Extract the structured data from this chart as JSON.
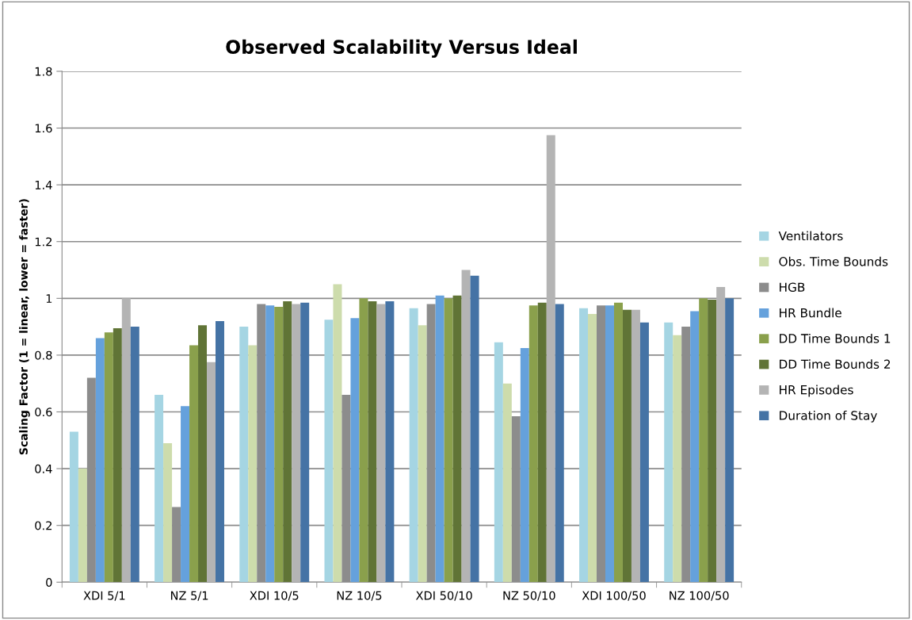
{
  "chart_data": {
    "type": "bar",
    "title": "Observed Scalability Versus Ideal",
    "ylabel": "Scaling Factor (1 = linear, lower = faster)",
    "categories": [
      "XDI 5/1",
      "NZ 5/1",
      "XDI 10/5",
      "NZ 10/5",
      "XDI 50/10",
      "NZ 50/10",
      "XDI 100/50",
      "NZ 100/50"
    ],
    "series": [
      {
        "name": "Ventilators",
        "color": "#a5d5e3",
        "values": [
          0.53,
          0.66,
          0.9,
          0.925,
          0.965,
          0.845,
          0.965,
          0.915
        ]
      },
      {
        "name": "Obs. Time Bounds",
        "color": "#cddcac",
        "values": [
          0.4,
          0.49,
          0.835,
          1.05,
          0.905,
          0.7,
          0.945,
          0.87
        ]
      },
      {
        "name": "HGB",
        "color": "#8c8c8c",
        "values": [
          0.72,
          0.265,
          0.98,
          0.66,
          0.98,
          0.585,
          0.975,
          0.9
        ]
      },
      {
        "name": "HR Bundle",
        "color": "#65a1dc",
        "values": [
          0.86,
          0.62,
          0.975,
          0.93,
          1.01,
          0.825,
          0.975,
          0.955
        ]
      },
      {
        "name": "DD Time Bounds 1",
        "color": "#8aa04c",
        "values": [
          0.88,
          0.835,
          0.97,
          1.0,
          1.0,
          0.975,
          0.985,
          1.0
        ]
      },
      {
        "name": "DD Time Bounds 2",
        "color": "#607436",
        "values": [
          0.895,
          0.905,
          0.99,
          0.99,
          1.01,
          0.985,
          0.96,
          0.995
        ]
      },
      {
        "name": "HR Episodes",
        "color": "#b4b4b4",
        "values": [
          1.0,
          0.775,
          0.98,
          0.98,
          1.1,
          1.575,
          0.96,
          1.04
        ]
      },
      {
        "name": "Duration of Stay",
        "color": "#4573a5",
        "values": [
          0.9,
          0.92,
          0.985,
          0.99,
          1.08,
          0.98,
          0.915,
          1.0
        ]
      }
    ],
    "ylim": [
      0,
      1.8
    ],
    "yticks": [
      0,
      0.2,
      0.4,
      0.6,
      0.8,
      1,
      1.2,
      1.4,
      1.6,
      1.8
    ],
    "grid": "y",
    "legend": "right"
  }
}
